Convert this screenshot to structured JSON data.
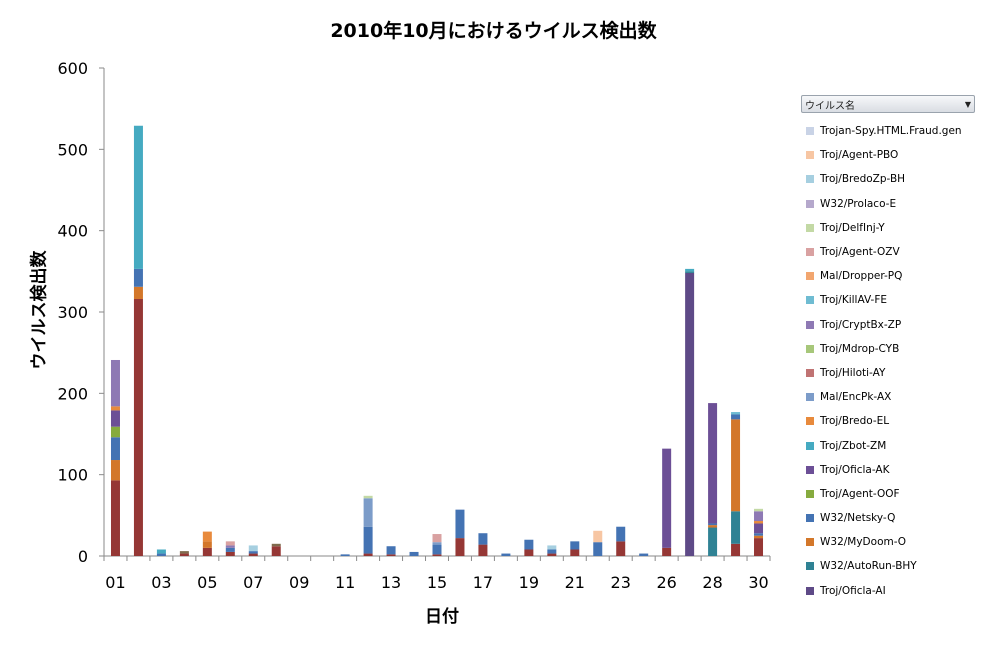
{
  "chart_data": {
    "type": "bar",
    "stacked": true,
    "title": "2010年10月におけるウイルス検出数",
    "xlabel": "日付",
    "ylabel": "ウイルス検出数",
    "ylim": [
      0,
      600
    ],
    "yticks": [
      "0",
      "100",
      "200",
      "300",
      "400",
      "500",
      "600"
    ],
    "grid": false,
    "legend_position": "right",
    "legend_title": "ウイルス名",
    "categories": [
      "01",
      "02",
      "03",
      "04",
      "05",
      "06",
      "07",
      "08",
      "09",
      "10",
      "11",
      "12",
      "13",
      "14",
      "15",
      "16",
      "17",
      "18",
      "19",
      "20",
      "21",
      "22",
      "23",
      "24",
      "26",
      "27",
      "28",
      "29",
      "30"
    ],
    "x_tick_labels": [
      "01",
      "",
      "03",
      "",
      "05",
      "",
      "07",
      "",
      "09",
      "",
      "11",
      "",
      "13",
      "",
      "15",
      "",
      "17",
      "",
      "19",
      "",
      "21",
      "",
      "23",
      "",
      "26",
      "",
      "28",
      "",
      "30"
    ],
    "series": [
      {
        "name": "Troj/Oficla-AI",
        "color": "#5e4a87",
        "values": [
          0,
          0,
          0,
          0,
          0,
          0,
          0,
          0,
          0,
          0,
          0,
          0,
          0,
          0,
          0,
          0,
          0,
          0,
          0,
          0,
          0,
          0,
          0,
          0,
          0,
          348,
          0,
          0,
          0
        ]
      },
      {
        "name": "W32/AutoRun-BHY",
        "color": "#2f8294",
        "values": [
          0,
          0,
          0,
          0,
          0,
          0,
          0,
          0,
          0,
          0,
          0,
          0,
          0,
          0,
          0,
          0,
          0,
          0,
          0,
          0,
          0,
          0,
          0,
          0,
          0,
          2,
          35,
          40,
          0
        ]
      },
      {
        "name": "W32/MyDoom-O",
        "color": "#d3772a",
        "values": [
          25,
          15,
          0,
          0,
          8,
          0,
          0,
          0,
          0,
          0,
          0,
          0,
          0,
          0,
          0,
          0,
          0,
          0,
          0,
          0,
          0,
          0,
          0,
          0,
          0,
          0,
          3,
          113,
          3
        ]
      },
      {
        "name": "W32/Netsky-Q",
        "color": "#4473b3",
        "values": [
          28,
          22,
          3,
          0,
          0,
          5,
          3,
          0,
          0,
          0,
          2,
          33,
          10,
          5,
          12,
          35,
          14,
          3,
          12,
          5,
          10,
          17,
          18,
          3,
          0,
          0,
          2,
          6,
          3
        ]
      },
      {
        "name": "Troj/Agent-OOF",
        "color": "#86ab3e",
        "values": [
          13,
          0,
          0,
          0,
          0,
          0,
          0,
          0,
          0,
          0,
          0,
          0,
          0,
          0,
          0,
          0,
          0,
          0,
          0,
          0,
          0,
          0,
          0,
          0,
          0,
          0,
          0,
          0,
          0
        ]
      },
      {
        "name": "Troj/Oficla-AK",
        "color": "#6c4f96",
        "values": [
          20,
          0,
          0,
          0,
          0,
          0,
          0,
          0,
          0,
          0,
          0,
          0,
          0,
          0,
          0,
          0,
          0,
          0,
          0,
          0,
          0,
          0,
          0,
          0,
          122,
          0,
          148,
          0,
          12
        ]
      },
      {
        "name": "Troj/Zbot-ZM",
        "color": "#45aac1",
        "values": [
          0,
          176,
          5,
          0,
          0,
          0,
          0,
          0,
          0,
          0,
          0,
          0,
          0,
          0,
          0,
          0,
          0,
          0,
          0,
          0,
          0,
          0,
          0,
          0,
          0,
          3,
          0,
          0,
          0
        ]
      },
      {
        "name": "Troj/Bredo-EL",
        "color": "#e88a3c",
        "values": [
          5,
          0,
          0,
          0,
          12,
          0,
          0,
          0,
          0,
          0,
          0,
          0,
          0,
          0,
          0,
          0,
          0,
          0,
          0,
          0,
          0,
          0,
          0,
          0,
          0,
          0,
          0,
          0,
          3
        ]
      },
      {
        "name": "Mal/EncPk-AX",
        "color": "#7c9cc9",
        "values": [
          0,
          0,
          0,
          0,
          0,
          0,
          0,
          0,
          0,
          0,
          0,
          35,
          0,
          0,
          3,
          0,
          0,
          0,
          0,
          0,
          0,
          0,
          0,
          0,
          0,
          0,
          0,
          0,
          0
        ]
      },
      {
        "name": "Troj/Hiloti-AY",
        "color": "#c07373",
        "values": [
          0,
          0,
          0,
          0,
          0,
          0,
          0,
          0,
          0,
          0,
          0,
          0,
          0,
          0,
          0,
          0,
          0,
          0,
          0,
          0,
          0,
          0,
          0,
          0,
          0,
          0,
          0,
          0,
          0
        ]
      },
      {
        "name": "Troj/Mdrop-CYB",
        "color": "#a7c77a",
        "values": [
          0,
          0,
          0,
          0,
          0,
          0,
          0,
          0,
          0,
          0,
          0,
          0,
          0,
          0,
          0,
          0,
          0,
          0,
          0,
          0,
          0,
          0,
          0,
          0,
          0,
          0,
          0,
          0,
          0
        ]
      },
      {
        "name": "Troj/CryptBx-ZP",
        "color": "#8e79b4",
        "values": [
          57,
          0,
          0,
          0,
          0,
          3,
          0,
          0,
          0,
          0,
          0,
          0,
          0,
          0,
          0,
          0,
          0,
          0,
          0,
          0,
          0,
          0,
          0,
          0,
          0,
          0,
          0,
          0,
          12
        ]
      },
      {
        "name": "Troj/KillAV-FE",
        "color": "#6fbcd2",
        "values": [
          0,
          0,
          0,
          0,
          0,
          0,
          0,
          0,
          0,
          0,
          0,
          0,
          0,
          0,
          0,
          0,
          0,
          0,
          0,
          0,
          0,
          0,
          0,
          0,
          0,
          0,
          0,
          3,
          0
        ]
      },
      {
        "name": "Mal/Dropper-PQ",
        "color": "#f2a66f",
        "values": [
          0,
          0,
          0,
          0,
          0,
          0,
          0,
          0,
          0,
          0,
          0,
          0,
          0,
          0,
          0,
          0,
          0,
          0,
          0,
          0,
          0,
          0,
          0,
          0,
          0,
          0,
          0,
          0,
          0
        ]
      },
      {
        "name": "Troj/Agent-OZV",
        "color": "#d9a1a1",
        "values": [
          0,
          0,
          0,
          0,
          0,
          5,
          0,
          0,
          0,
          0,
          0,
          0,
          0,
          0,
          10,
          0,
          0,
          0,
          0,
          0,
          0,
          0,
          0,
          0,
          0,
          0,
          0,
          0,
          0
        ]
      },
      {
        "name": "Troj/DelfInj-Y",
        "color": "#c3d9a5",
        "values": [
          0,
          0,
          0,
          0,
          0,
          0,
          0,
          0,
          0,
          0,
          0,
          3,
          0,
          0,
          0,
          0,
          0,
          0,
          0,
          0,
          0,
          0,
          0,
          0,
          0,
          0,
          0,
          0,
          3
        ]
      },
      {
        "name": "W32/Prolaco-E",
        "color": "#b5a8cc",
        "values": [
          0,
          0,
          0,
          0,
          0,
          0,
          0,
          0,
          0,
          0,
          0,
          0,
          0,
          0,
          0,
          0,
          0,
          0,
          0,
          0,
          0,
          0,
          0,
          0,
          0,
          0,
          0,
          0,
          0
        ]
      },
      {
        "name": "Troj/BredoZp-BH",
        "color": "#a6cfe0",
        "values": [
          0,
          0,
          0,
          0,
          0,
          0,
          7,
          0,
          0,
          0,
          0,
          0,
          0,
          0,
          0,
          0,
          0,
          0,
          0,
          5,
          0,
          0,
          0,
          0,
          0,
          0,
          0,
          0,
          0
        ]
      },
      {
        "name": "Troj/Agent-PBO",
        "color": "#f7c6a3",
        "values": [
          0,
          0,
          0,
          0,
          0,
          0,
          0,
          0,
          0,
          0,
          0,
          0,
          0,
          0,
          0,
          0,
          0,
          0,
          0,
          0,
          0,
          14,
          0,
          0,
          0,
          0,
          0,
          0,
          0
        ]
      },
      {
        "name": "Trojan-Spy.HTML.Fraud.gen",
        "color": "#c9d3e6",
        "values": [
          0,
          0,
          0,
          0,
          0,
          0,
          0,
          0,
          0,
          0,
          0,
          0,
          0,
          0,
          0,
          0,
          0,
          0,
          0,
          0,
          0,
          0,
          0,
          0,
          0,
          0,
          0,
          0,
          0
        ]
      }
    ],
    "base_series": [
      {
        "name": "",
        "color": "#953735",
        "values": [
          93,
          316,
          0,
          3,
          10,
          5,
          3,
          12,
          0,
          0,
          0,
          3,
          2,
          0,
          2,
          22,
          14,
          0,
          8,
          3,
          8,
          0,
          18,
          0,
          10,
          0,
          0,
          15,
          22
        ]
      },
      {
        "name": "",
        "color": "#7f6b4d",
        "values": [
          0,
          0,
          0,
          3,
          0,
          0,
          0,
          3,
          0,
          0,
          0,
          0,
          0,
          0,
          0,
          0,
          0,
          0,
          0,
          0,
          0,
          0,
          0,
          0,
          0,
          0,
          0,
          0,
          0
        ]
      }
    ]
  }
}
